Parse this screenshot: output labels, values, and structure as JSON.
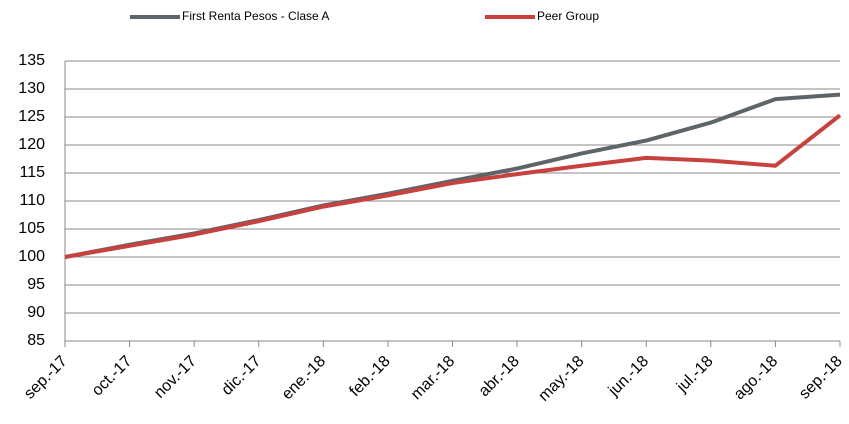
{
  "chart_data": {
    "type": "line",
    "categories": [
      "sep.-17",
      "oct.-17",
      "nov.-17",
      "dic.-17",
      "ene.-18",
      "feb.-18",
      "mar.-18",
      "abr.-18",
      "may.-18",
      "jun.-18",
      "jul.-18",
      "ago.-18",
      "sep.-18"
    ],
    "series": [
      {
        "name": "First Renta Pesos - Clase A",
        "color": "#5d6569",
        "values": [
          100,
          102.2,
          104.2,
          106.6,
          109.2,
          111.3,
          113.6,
          115.8,
          118.5,
          120.8,
          124.0,
          128.2,
          129.0
        ]
      },
      {
        "name": "Peer Group",
        "color": "#c8413f",
        "values": [
          100,
          102.0,
          104.0,
          106.4,
          109.0,
          111.0,
          113.2,
          114.8,
          116.3,
          117.7,
          117.2,
          116.3,
          125.3
        ]
      }
    ],
    "ylim": [
      85,
      135
    ],
    "yticks": [
      85,
      90,
      95,
      100,
      105,
      110,
      115,
      120,
      125,
      130,
      135
    ],
    "grid": true
  }
}
